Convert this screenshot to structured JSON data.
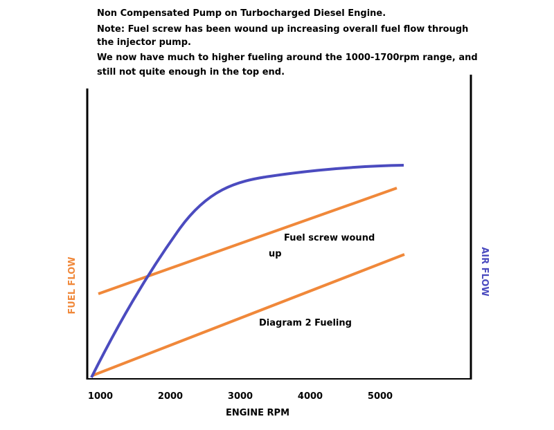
{
  "header": {
    "lines": [
      "Non Compensated Pump on Turbocharged Diesel Engine.",
      "Note: Fuel screw has been wound up increasing overall fuel flow through",
      "the injector pump.",
      "We now have much to higher fueling around the 1000-1700rpm range, and",
      "still not quite enough in the top end."
    ]
  },
  "axes": {
    "x_label": "ENGINE RPM",
    "left_label": "FUEL FLOW",
    "right_label": "AIR FLOW",
    "x_ticks": [
      "1000",
      "2000",
      "3000",
      "4000",
      "5000"
    ]
  },
  "annotations": {
    "screw_line1": "Fuel screw wound",
    "screw_line2": "up",
    "diagram2": "Diagram 2 Fueling"
  }
}
